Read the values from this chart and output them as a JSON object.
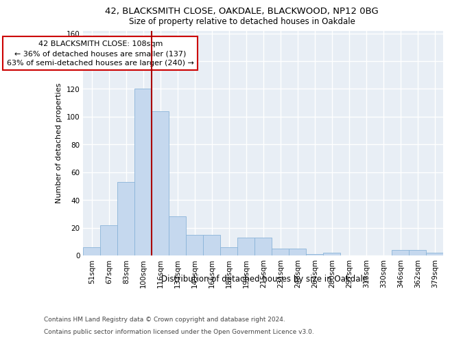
{
  "title1": "42, BLACKSMITH CLOSE, OAKDALE, BLACKWOOD, NP12 0BG",
  "title2": "Size of property relative to detached houses in Oakdale",
  "xlabel": "Distribution of detached houses by size in Oakdale",
  "ylabel": "Number of detached properties",
  "categories": [
    "51sqm",
    "67sqm",
    "83sqm",
    "100sqm",
    "116sqm",
    "133sqm",
    "149sqm",
    "166sqm",
    "182sqm",
    "198sqm",
    "215sqm",
    "231sqm",
    "248sqm",
    "264sqm",
    "280sqm",
    "297sqm",
    "313sqm",
    "330sqm",
    "346sqm",
    "362sqm",
    "379sqm"
  ],
  "values": [
    6,
    22,
    53,
    120,
    104,
    28,
    15,
    15,
    6,
    13,
    13,
    5,
    5,
    1,
    2,
    0,
    0,
    0,
    4,
    4,
    2
  ],
  "bar_color": "#c5d8ee",
  "bar_edge_color": "#8ab4d8",
  "highlight_index": 3,
  "highlight_line_color": "#aa0000",
  "annotation_text": "42 BLACKSMITH CLOSE: 108sqm\n← 36% of detached houses are smaller (137)\n63% of semi-detached houses are larger (240) →",
  "annotation_box_color": "#ffffff",
  "annotation_box_edge_color": "#cc0000",
  "ylim": [
    0,
    162
  ],
  "yticks": [
    0,
    20,
    40,
    60,
    80,
    100,
    120,
    140,
    160
  ],
  "footer1": "Contains HM Land Registry data © Crown copyright and database right 2024.",
  "footer2": "Contains public sector information licensed under the Open Government Licence v3.0.",
  "bg_color": "#e8eef5",
  "fig_bg_color": "#ffffff",
  "grid_color": "#ffffff",
  "title1_fontsize": 9.5,
  "title2_fontsize": 8.5,
  "xlabel_fontsize": 8.5,
  "ylabel_fontsize": 8,
  "tick_fontsize": 7.5,
  "footer_fontsize": 6.5
}
